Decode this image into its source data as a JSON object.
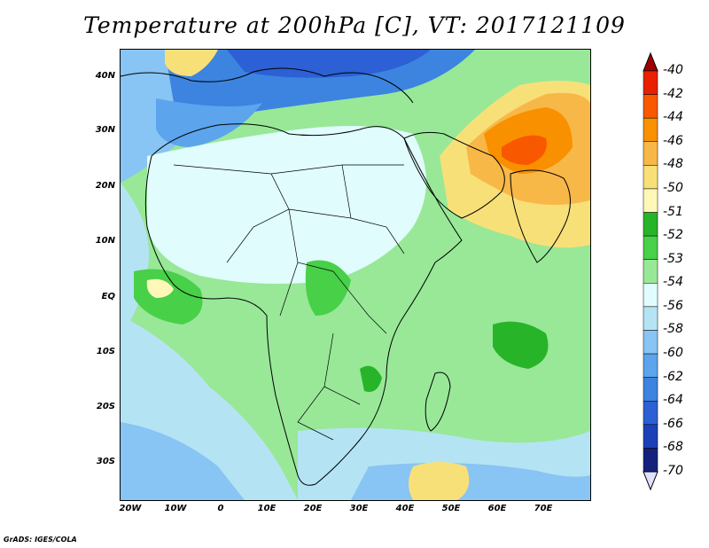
{
  "title": "Temperature at 200hPa [C], VT: 2017121109",
  "footer": "GrADS: IGES/COLA",
  "map": {
    "lon_range": [
      -22,
      80
    ],
    "lat_range": [
      -37,
      45
    ],
    "lat_ticks": [
      "40N",
      "30N",
      "20N",
      "10N",
      "EQ",
      "10S",
      "20S",
      "30S"
    ],
    "lon_ticks": [
      "20W",
      "10W",
      "0",
      "10E",
      "20E",
      "30E",
      "40E",
      "50E",
      "60E",
      "70E"
    ]
  },
  "colorbar": {
    "labels": [
      "-40",
      "-42",
      "-44",
      "-46",
      "-48",
      "-50",
      "-51",
      "-52",
      "-53",
      "-54",
      "-56",
      "-58",
      "-60",
      "-62",
      "-64",
      "-66",
      "-68",
      "-70"
    ],
    "colors": [
      "#a00000",
      "#e82000",
      "#f85800",
      "#f89000",
      "#f8b848",
      "#f8e078",
      "#fdf8b8",
      "#28b428",
      "#48d048",
      "#98e898",
      "#e0fcfc",
      "#b4e4f4",
      "#88c4f4",
      "#5ca4ec",
      "#3c84e0",
      "#2c60d4",
      "#1c40b8",
      "#14227c",
      "#e0e0ff"
    ]
  }
}
